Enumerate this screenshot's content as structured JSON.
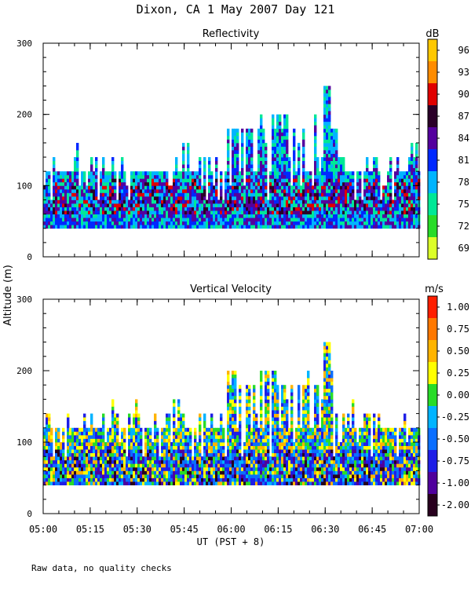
{
  "figure": {
    "title": "Dixon, CA  1 May 2007  Day 121",
    "ylabel": "Altitude (m)",
    "xlabel": "UT  (PST + 8)",
    "footnote": "Raw data, no quality checks"
  },
  "chart_data": [
    {
      "type": "heatmap",
      "title": "Reflectivity",
      "colorbar_label": "dB",
      "x_ticks": [
        "05:00",
        "05:15",
        "05:30",
        "05:45",
        "06:00",
        "06:15",
        "06:30",
        "06:45",
        "07:00"
      ],
      "x_range_minutes": [
        0,
        120
      ],
      "y_ticks": [
        "0",
        "100",
        "200",
        "300"
      ],
      "ylim": [
        0,
        300
      ],
      "colorbar_levels": [
        "96",
        "93",
        "90",
        "87",
        "84",
        "81",
        "78",
        "75",
        "72",
        "69"
      ],
      "colorbar_colors": [
        "#ffc800",
        "#ff8c00",
        "#e00000",
        "#2a0028",
        "#54009e",
        "#0028ff",
        "#00b4ff",
        "#00e896",
        "#28dc28",
        "#dcff28"
      ],
      "data_summary": {
        "echo_base_m": 40,
        "typical_top_m": 120,
        "max_top_m": 240
      }
    },
    {
      "type": "heatmap",
      "title": "Vertical Velocity",
      "colorbar_label": "m/s",
      "x_ticks": [
        "05:00",
        "05:15",
        "05:30",
        "05:45",
        "06:00",
        "06:15",
        "06:30",
        "06:45",
        "07:00"
      ],
      "x_range_minutes": [
        0,
        120
      ],
      "y_ticks": [
        "0",
        "100",
        "200",
        "300"
      ],
      "ylim": [
        0,
        300
      ],
      "colorbar_levels": [
        "1.00",
        "0.75",
        "0.50",
        "0.25",
        "0.00",
        "-0.25",
        "-0.50",
        "-0.75",
        "-1.00",
        "-2.00"
      ],
      "colorbar_colors": [
        "#ff1e00",
        "#ff7800",
        "#ffb400",
        "#ffff00",
        "#28dc28",
        "#00b4ff",
        "#0a6eff",
        "#1e1ee6",
        "#50009c",
        "#28001e"
      ],
      "data_summary": {
        "echo_base_m": 40,
        "typical_top_m": 120,
        "max_top_m": 240
      }
    }
  ]
}
